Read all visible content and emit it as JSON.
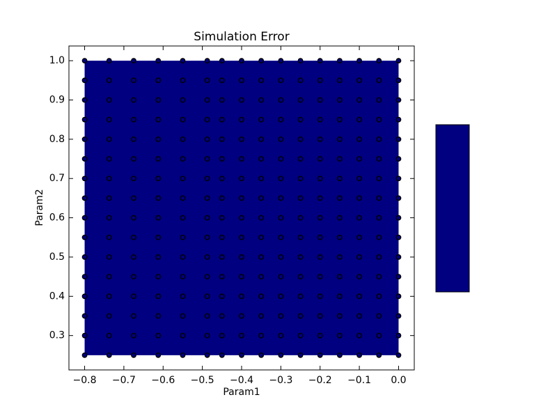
{
  "chart_data": {
    "type": "scatter",
    "title": "Simulation Error",
    "xlabel": "Param1",
    "ylabel": "Param2",
    "x": [
      -0.8,
      -0.7375,
      -0.675,
      -0.6125,
      -0.55,
      -0.4875,
      -0.45,
      -0.4,
      -0.35,
      -0.3,
      -0.25,
      -0.2,
      -0.15,
      -0.1,
      -0.05,
      0
    ],
    "y": [
      1.0,
      0.95,
      0.9,
      0.85,
      0.8,
      0.75,
      0.7,
      0.65,
      0.6,
      0.55,
      0.5,
      0.45,
      0.4,
      0.35,
      0.3,
      0.25
    ],
    "fill_color": "#000080",
    "marker_edge_color": "#000000",
    "xlim": [
      -0.84,
      0.04
    ],
    "ylim": [
      0.2125,
      1.0375
    ],
    "xticks": [
      {
        "value": -0.8,
        "label": "−0.8"
      },
      {
        "value": -0.7,
        "label": "−0.7"
      },
      {
        "value": -0.6,
        "label": "−0.6"
      },
      {
        "value": -0.5,
        "label": "−0.5"
      },
      {
        "value": -0.4,
        "label": "−0.4"
      },
      {
        "value": -0.3,
        "label": "−0.3"
      },
      {
        "value": -0.2,
        "label": "−0.2"
      },
      {
        "value": -0.1,
        "label": "−0.1"
      },
      {
        "value": 0,
        "label": "0.0"
      }
    ],
    "yticks": [
      0.3,
      0.4,
      0.5,
      0.6,
      0.7,
      0.8,
      0.9,
      {
        "value": 1,
        "label": "1.0"
      }
    ]
  }
}
